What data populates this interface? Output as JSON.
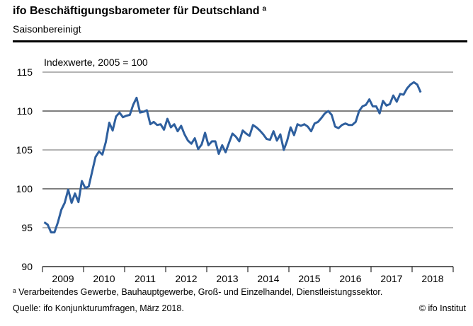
{
  "header": {
    "title": "ifo Beschäftigungsbarometer für Deutschland",
    "title_marker": "a",
    "subtitle": "Saisonbereinigt"
  },
  "footer": {
    "footnote": "ᵃ Verarbeitendes Gewerbe, Bauhauptgewerbe, Groß- und Einzelhandel, Dienstleistungssektor.",
    "source": "Quelle: ifo Konjunkturumfragen, März 2018.",
    "credit": "© ifo Institut"
  },
  "chart_data": {
    "type": "line",
    "ylabel": "Indexwerte, 2005 = 100",
    "ylim": [
      90,
      115
    ],
    "yticks": [
      90,
      95,
      100,
      105,
      110,
      115
    ],
    "xticks": [
      "2009",
      "2010",
      "2011",
      "2012",
      "2013",
      "2014",
      "2015",
      "2016",
      "2017",
      "2018"
    ],
    "x_start": "2009-01",
    "x_end": "2018-03",
    "frequency": "monthly",
    "grid": true,
    "line_color": "#2e5f9e",
    "values": [
      95.7,
      95.4,
      94.4,
      94.4,
      95.7,
      97.3,
      98.2,
      99.9,
      98.2,
      99.4,
      98.3,
      101.0,
      100.1,
      100.3,
      102.2,
      104.1,
      104.8,
      104.4,
      106.0,
      108.5,
      107.5,
      109.3,
      109.8,
      109.2,
      109.4,
      109.5,
      110.8,
      111.7,
      109.8,
      109.9,
      110.1,
      108.3,
      108.6,
      108.2,
      108.3,
      107.6,
      109.0,
      107.9,
      108.3,
      107.4,
      108.1,
      107.0,
      106.2,
      105.8,
      106.5,
      105.1,
      105.7,
      107.2,
      105.6,
      106.1,
      106.1,
      104.5,
      105.6,
      104.7,
      105.9,
      107.1,
      106.7,
      106.1,
      107.5,
      107.1,
      106.8,
      108.2,
      107.9,
      107.5,
      107.0,
      106.4,
      106.3,
      107.4,
      106.2,
      107.0,
      105.0,
      106.2,
      107.9,
      106.9,
      108.3,
      108.1,
      108.3,
      108.0,
      107.4,
      108.4,
      108.6,
      109.1,
      109.7,
      110.0,
      109.5,
      108.0,
      107.8,
      108.2,
      108.4,
      108.2,
      108.2,
      108.6,
      110.0,
      110.6,
      110.8,
      111.5,
      110.6,
      110.6,
      109.7,
      111.3,
      110.7,
      110.9,
      112.0,
      111.2,
      112.2,
      112.1,
      112.9,
      113.4,
      113.7,
      113.4,
      112.4
    ]
  }
}
